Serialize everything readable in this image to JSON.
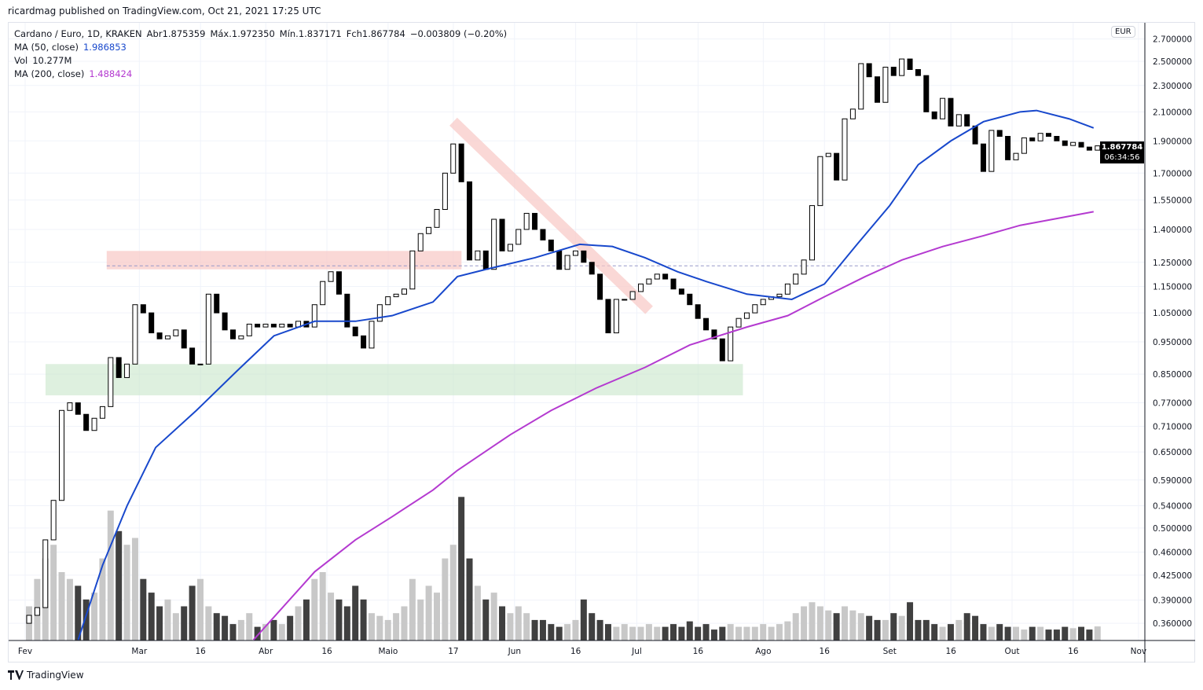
{
  "publisher_line": "ricardmag published on TradingView.com, Oct 21, 2021 17:25 UTC",
  "legend": {
    "symbol": "Cardano / Euro, 1D, KRAKEN",
    "open": "Abr1.875359",
    "high": "Máx.1.972350",
    "low": "Mín.1.837171",
    "close": "Fch1.867784",
    "change": "−0.003809 (−0.20%)",
    "ma50_label": "MA (50, close)",
    "ma50_value": "1.986853",
    "vol_label": "Vol",
    "vol_value": "10.277M",
    "ma200_label": "MA (200, close)",
    "ma200_value": "1.488424"
  },
  "currency_button": "EUR",
  "last_price_label": "1.867784",
  "countdown": "06:34:56",
  "brand": "TradingView",
  "colors": {
    "ma50": "#1848cc",
    "ma200": "#b43ad0",
    "up": "#ffffff",
    "down": "#000000",
    "resistance_zone": "#f8c8c4",
    "support_zone": "#c8e6c9"
  },
  "chart_data": {
    "type": "candlestick",
    "y_scale": "log",
    "grid": true,
    "price_ticks": [
      "2.700000",
      "2.500000",
      "2.300000",
      "2.100000",
      "1.900000",
      "1.700000",
      "1.550000",
      "1.400000",
      "1.250000",
      "1.150000",
      "1.050000",
      "0.950000",
      "0.850000",
      "0.770000",
      "0.710000",
      "0.650000",
      "0.590000",
      "0.540000",
      "0.500000",
      "0.460000",
      "0.425000",
      "0.390000",
      "0.360000"
    ],
    "time_ticks": [
      {
        "label": "Fev",
        "date": "2021-02-01"
      },
      {
        "label": "Mar",
        "date": "2021-03-01"
      },
      {
        "label": "16",
        "date": "2021-03-16"
      },
      {
        "label": "Abr",
        "date": "2021-04-01"
      },
      {
        "label": "16",
        "date": "2021-04-16"
      },
      {
        "label": "Maio",
        "date": "2021-05-01"
      },
      {
        "label": "17",
        "date": "2021-05-17"
      },
      {
        "label": "Jun",
        "date": "2021-06-01"
      },
      {
        "label": "16",
        "date": "2021-06-16"
      },
      {
        "label": "Jul",
        "date": "2021-07-01"
      },
      {
        "label": "16",
        "date": "2021-07-16"
      },
      {
        "label": "Ago",
        "date": "2021-08-01"
      },
      {
        "label": "16",
        "date": "2021-08-16"
      },
      {
        "label": "Set",
        "date": "2021-09-01"
      },
      {
        "label": "16",
        "date": "2021-09-16"
      },
      {
        "label": "Out",
        "date": "2021-10-01"
      },
      {
        "label": "16",
        "date": "2021-10-16"
      },
      {
        "label": "Nov",
        "date": "2021-11-01"
      }
    ],
    "dates": [
      "2021-02-01",
      "2021-02-03",
      "2021-02-05",
      "2021-02-07",
      "2021-02-09",
      "2021-02-11",
      "2021-02-13",
      "2021-02-15",
      "2021-02-17",
      "2021-02-19",
      "2021-02-21",
      "2021-02-23",
      "2021-02-25",
      "2021-02-27",
      "2021-03-01",
      "2021-03-03",
      "2021-03-05",
      "2021-03-07",
      "2021-03-09",
      "2021-03-11",
      "2021-03-13",
      "2021-03-15",
      "2021-03-17",
      "2021-03-19",
      "2021-03-21",
      "2021-03-23",
      "2021-03-25",
      "2021-03-27",
      "2021-03-29",
      "2021-03-31",
      "2021-04-02",
      "2021-04-04",
      "2021-04-06",
      "2021-04-08",
      "2021-04-10",
      "2021-04-12",
      "2021-04-14",
      "2021-04-16",
      "2021-04-18",
      "2021-04-20",
      "2021-04-22",
      "2021-04-24",
      "2021-04-26",
      "2021-04-28",
      "2021-04-30",
      "2021-05-02",
      "2021-05-04",
      "2021-05-06",
      "2021-05-08",
      "2021-05-10",
      "2021-05-12",
      "2021-05-14",
      "2021-05-16",
      "2021-05-18",
      "2021-05-20",
      "2021-05-22",
      "2021-05-24",
      "2021-05-26",
      "2021-05-28",
      "2021-05-30",
      "2021-06-01",
      "2021-06-03",
      "2021-06-05",
      "2021-06-07",
      "2021-06-09",
      "2021-06-11",
      "2021-06-13",
      "2021-06-15",
      "2021-06-17",
      "2021-06-19",
      "2021-06-21",
      "2021-06-23",
      "2021-06-25",
      "2021-06-27",
      "2021-06-29",
      "2021-07-01",
      "2021-07-03",
      "2021-07-05",
      "2021-07-07",
      "2021-07-09",
      "2021-07-11",
      "2021-07-13",
      "2021-07-15",
      "2021-07-17",
      "2021-07-19",
      "2021-07-21",
      "2021-07-23",
      "2021-07-25",
      "2021-07-27",
      "2021-07-29",
      "2021-07-31",
      "2021-08-02",
      "2021-08-04",
      "2021-08-06",
      "2021-08-08",
      "2021-08-10",
      "2021-08-12",
      "2021-08-14",
      "2021-08-16",
      "2021-08-18",
      "2021-08-20",
      "2021-08-22",
      "2021-08-24",
      "2021-08-26",
      "2021-08-28",
      "2021-08-30",
      "2021-09-01",
      "2021-09-03",
      "2021-09-05",
      "2021-09-07",
      "2021-09-09",
      "2021-09-11",
      "2021-09-13",
      "2021-09-15",
      "2021-09-17",
      "2021-09-19",
      "2021-09-21",
      "2021-09-23",
      "2021-09-25",
      "2021-09-27",
      "2021-09-29",
      "2021-10-01",
      "2021-10-03",
      "2021-10-05",
      "2021-10-07",
      "2021-10-09",
      "2021-10-11",
      "2021-10-13",
      "2021-10-15",
      "2021-10-17",
      "2021-10-19",
      "2021-10-21"
    ],
    "close": [
      0.37,
      0.38,
      0.48,
      0.55,
      0.75,
      0.77,
      0.74,
      0.7,
      0.73,
      0.76,
      0.9,
      0.84,
      0.88,
      1.08,
      1.05,
      0.98,
      0.96,
      0.97,
      0.99,
      0.93,
      0.88,
      0.88,
      1.12,
      1.05,
      0.99,
      0.96,
      0.97,
      1.01,
      1.0,
      1.01,
      1.0,
      1.01,
      1.0,
      1.02,
      1.0,
      1.08,
      1.17,
      1.21,
      1.12,
      1.0,
      0.97,
      0.93,
      1.02,
      1.08,
      1.11,
      1.12,
      1.14,
      1.3,
      1.38,
      1.41,
      1.5,
      1.7,
      1.88,
      1.65,
      1.26,
      1.3,
      1.22,
      1.45,
      1.3,
      1.33,
      1.4,
      1.48,
      1.4,
      1.35,
      1.3,
      1.22,
      1.28,
      1.3,
      1.25,
      1.2,
      1.1,
      0.98,
      1.1,
      1.1,
      1.13,
      1.16,
      1.18,
      1.2,
      1.18,
      1.14,
      1.12,
      1.08,
      1.03,
      0.99,
      0.96,
      0.89,
      1.0,
      1.03,
      1.05,
      1.08,
      1.1,
      1.11,
      1.12,
      1.16,
      1.2,
      1.26,
      1.52,
      1.8,
      1.82,
      1.66,
      2.05,
      2.12,
      2.48,
      2.37,
      2.17,
      2.45,
      2.38,
      2.52,
      2.43,
      2.38,
      2.1,
      2.05,
      2.2,
      2.0,
      2.08,
      2.0,
      1.88,
      1.71,
      1.97,
      1.93,
      1.78,
      1.82,
      1.92,
      1.9,
      1.95,
      1.93,
      1.9,
      1.87,
      1.89,
      1.86,
      1.84,
      1.867784
    ],
    "volume_millions": [
      25,
      45,
      60,
      70,
      50,
      45,
      40,
      30,
      35,
      60,
      95,
      80,
      70,
      75,
      45,
      35,
      25,
      30,
      20,
      25,
      40,
      45,
      25,
      20,
      18,
      12,
      15,
      20,
      10,
      12,
      15,
      12,
      18,
      25,
      30,
      45,
      50,
      35,
      30,
      25,
      40,
      30,
      20,
      18,
      15,
      20,
      25,
      45,
      30,
      40,
      35,
      60,
      70,
      105,
      60,
      40,
      30,
      35,
      25,
      20,
      25,
      20,
      15,
      15,
      12,
      10,
      12,
      15,
      30,
      20,
      15,
      12,
      10,
      12,
      10,
      10,
      12,
      10,
      10,
      12,
      10,
      14,
      10,
      12,
      8,
      10,
      12,
      10,
      10,
      10,
      12,
      10,
      12,
      14,
      20,
      25,
      28,
      25,
      22,
      20,
      25,
      22,
      20,
      18,
      15,
      15,
      20,
      18,
      28,
      15,
      15,
      12,
      10,
      12,
      15,
      20,
      18,
      12,
      10,
      12,
      10,
      10,
      8,
      10,
      10,
      8,
      8,
      10,
      9,
      10,
      8,
      10.277
    ],
    "ma50": [
      [
        "2021-02-14",
        0.34
      ],
      [
        "2021-02-20",
        0.44
      ],
      [
        "2021-02-26",
        0.54
      ],
      [
        "2021-03-05",
        0.66
      ],
      [
        "2021-03-15",
        0.75
      ],
      [
        "2021-03-25",
        0.86
      ],
      [
        "2021-04-03",
        0.97
      ],
      [
        "2021-04-13",
        1.02
      ],
      [
        "2021-04-23",
        1.02
      ],
      [
        "2021-05-02",
        1.04
      ],
      [
        "2021-05-12",
        1.09
      ],
      [
        "2021-05-18",
        1.19
      ],
      [
        "2021-05-25",
        1.22
      ],
      [
        "2021-06-06",
        1.27
      ],
      [
        "2021-06-17",
        1.33
      ],
      [
        "2021-06-25",
        1.32
      ],
      [
        "2021-07-03",
        1.27
      ],
      [
        "2021-07-11",
        1.21
      ],
      [
        "2021-07-18",
        1.17
      ],
      [
        "2021-07-28",
        1.12
      ],
      [
        "2021-08-08",
        1.1
      ],
      [
        "2021-08-16",
        1.16
      ],
      [
        "2021-08-24",
        1.33
      ],
      [
        "2021-09-01",
        1.52
      ],
      [
        "2021-09-08",
        1.75
      ],
      [
        "2021-09-16",
        1.9
      ],
      [
        "2021-09-24",
        2.03
      ],
      [
        "2021-10-03",
        2.1
      ],
      [
        "2021-10-07",
        2.11
      ],
      [
        "2021-10-15",
        2.05
      ],
      [
        "2021-10-21",
        1.986853
      ]
    ],
    "ma200": [
      [
        "2021-03-29",
        0.34
      ],
      [
        "2021-04-13",
        0.43
      ],
      [
        "2021-04-23",
        0.48
      ],
      [
        "2021-05-02",
        0.52
      ],
      [
        "2021-05-12",
        0.57
      ],
      [
        "2021-05-18",
        0.61
      ],
      [
        "2021-05-31",
        0.69
      ],
      [
        "2021-06-10",
        0.75
      ],
      [
        "2021-06-21",
        0.81
      ],
      [
        "2021-07-03",
        0.87
      ],
      [
        "2021-07-14",
        0.94
      ],
      [
        "2021-07-28",
        1.0
      ],
      [
        "2021-08-07",
        1.04
      ],
      [
        "2021-08-16",
        1.11
      ],
      [
        "2021-08-26",
        1.19
      ],
      [
        "2021-09-04",
        1.26
      ],
      [
        "2021-09-14",
        1.32
      ],
      [
        "2021-09-24",
        1.37
      ],
      [
        "2021-10-03",
        1.42
      ],
      [
        "2021-10-21",
        1.488424
      ]
    ],
    "annotations": {
      "resistance_zone": {
        "from": "2021-02-21",
        "to": "2021-05-19",
        "low": 1.22,
        "high": 1.3
      },
      "support_zone": {
        "from": "2021-02-06",
        "to": "2021-07-27",
        "low": 0.79,
        "high": 0.88
      },
      "trend_line": {
        "from": [
          "2021-05-17",
          2.03
        ],
        "to": [
          "2021-07-04",
          1.06
        ]
      },
      "dashed_level": {
        "from": "2021-02-21",
        "to": "2021-09-01",
        "price": 1.235
      }
    }
  }
}
